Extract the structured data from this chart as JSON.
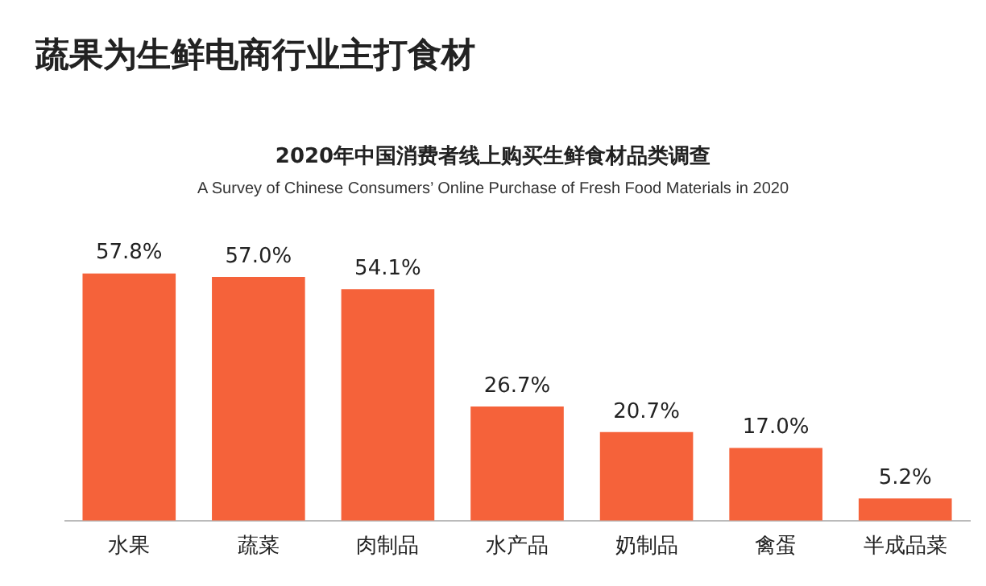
{
  "chart_data": {
    "type": "bar",
    "title": "2020年中国消费者线上购买生鲜食材品类调查",
    "subtitle": "A Survey of Chinese Consumers’  Online Purchase of Fresh Food Materials in 2020",
    "annotations": [
      "蔬果为生鲜电商行业主打食材"
    ],
    "categories": [
      "水果",
      "蔬菜",
      "肉制品",
      "水产品",
      "奶制品",
      "禽蛋",
      "半成品菜"
    ],
    "values": [
      57.8,
      57.0,
      54.1,
      26.7,
      20.7,
      17.0,
      5.2
    ],
    "value_labels": [
      "57.8%",
      "57.0%",
      "54.1%",
      "26.7%",
      "20.7%",
      "17.0%",
      "5.2%"
    ],
    "color": "#f5623a",
    "grid": false,
    "legend": false,
    "tick_labels": "x"
  }
}
